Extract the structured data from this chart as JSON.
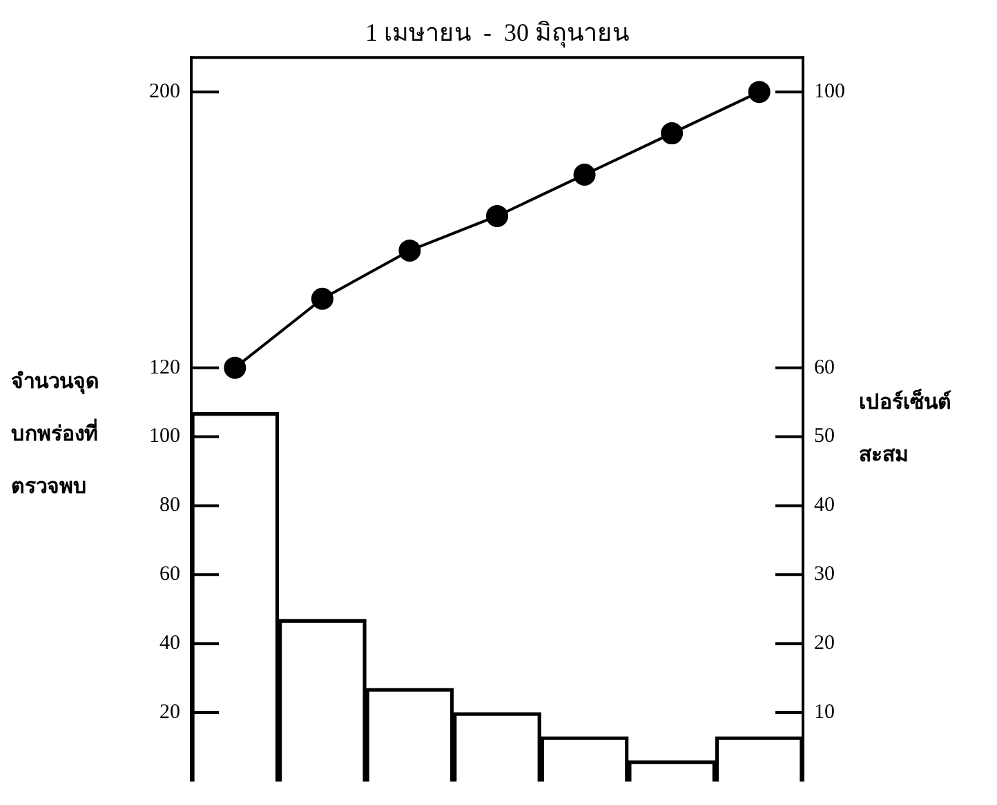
{
  "chart_data": {
    "type": "bar",
    "title": "1 เมษายน  -  30 มิถุนายน",
    "ylabel": "จำนวนจุดบกพร่องที่ตรวจพบ",
    "y2label": "เปอร์เซ็นต์สะสม",
    "categories": [
      null,
      null,
      null,
      null,
      null,
      null,
      null
    ],
    "series": [
      {
        "color": "#000000",
        "values": [
          107,
          47,
          27,
          20,
          13,
          6,
          13
        ]
      },
      {
        "type": "line",
        "axis": "y2",
        "color": "#000000",
        "marker": "circle",
        "values": [
          60,
          70,
          77,
          82,
          88,
          94,
          100
        ]
      }
    ],
    "ylim": [
      0,
      210
    ],
    "yticks": [
      20,
      40,
      60,
      80,
      100,
      120,
      200
    ],
    "y2lim": [
      0,
      105
    ],
    "y2ticks": [
      10,
      20,
      30,
      40,
      50,
      60,
      100
    ],
    "grid": false
  }
}
